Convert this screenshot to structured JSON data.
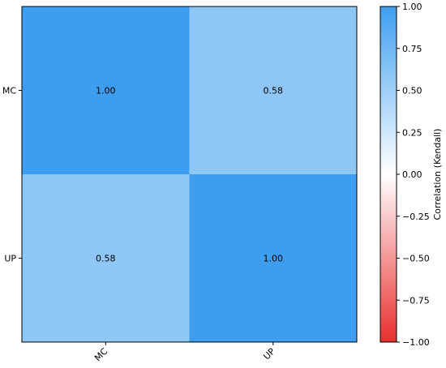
{
  "chart_data": {
    "type": "heatmap",
    "rows": [
      "MC",
      "UP"
    ],
    "cols": [
      "MC",
      "UP"
    ],
    "values": [
      [
        1.0,
        0.58
      ],
      [
        0.58,
        1.0
      ]
    ],
    "cell_labels": [
      [
        "1.00",
        "0.58"
      ],
      [
        "0.58",
        "1.00"
      ]
    ],
    "colorbar": {
      "label": "Correlation (Kendall)",
      "range": [
        -1.0,
        1.0
      ],
      "ticks": [
        "1.00",
        "0.75",
        "0.50",
        "0.25",
        "0.00",
        "−0.25",
        "−0.50",
        "−0.75",
        "−1.00"
      ],
      "tick_values": [
        1.0,
        0.75,
        0.5,
        0.25,
        0.0,
        -0.25,
        -0.5,
        -0.75,
        -1.0
      ],
      "color_min": "#e8302e",
      "color_mid": "#ffffff",
      "color_max": "#3d9ef0"
    },
    "x_tick_rotation_deg": -45,
    "grid": false,
    "legend": "none"
  }
}
